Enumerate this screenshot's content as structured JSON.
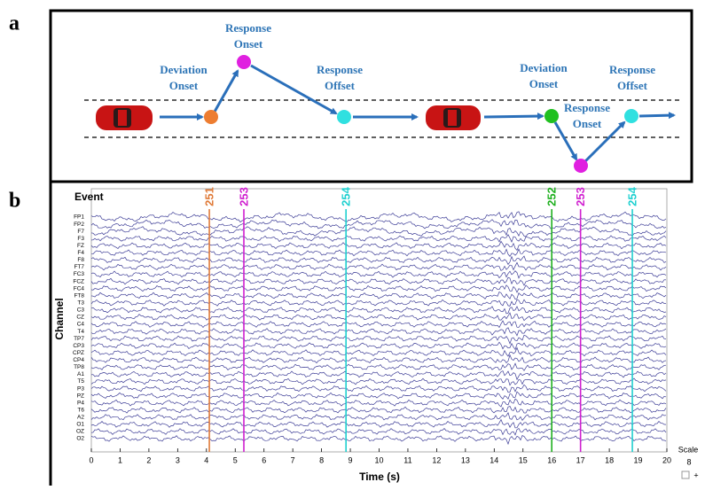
{
  "panel_labels": [
    "a",
    "b"
  ],
  "diagram": {
    "labels": [
      [
        "Deviation",
        "Onset"
      ],
      [
        "Response",
        "Onset"
      ],
      [
        "Response",
        "Offset"
      ],
      [
        "Deviation",
        "Onset"
      ],
      [
        "Response",
        "Onset"
      ],
      [
        "Response",
        "Offset"
      ]
    ]
  },
  "chart_data": {
    "type": "eeg",
    "xlabel": "Time (s)",
    "ylabel": "Channel",
    "event_label": "Event",
    "channels": [
      "FP1",
      "FP2",
      "F7",
      "F3",
      "FZ",
      "F4",
      "F8",
      "FT7",
      "FC3",
      "FCZ",
      "FC4",
      "FT8",
      "T3",
      "C3",
      "CZ",
      "C4",
      "T4",
      "TP7",
      "CP3",
      "CPZ",
      "CP4",
      "TP8",
      "A1",
      "T5",
      "P3",
      "PZ",
      "P4",
      "T6",
      "A2",
      "O1",
      "OZ",
      "O2"
    ],
    "trace_color": "#3c3c96",
    "events": {
      "x": [
        4.1,
        5.3,
        8.85,
        16.0,
        17.0,
        18.8
      ],
      "labels": [
        "251",
        "253",
        "254",
        "252",
        "253",
        "254"
      ],
      "colors": [
        "#e07b39",
        "#d020d0",
        "#20d0d0",
        "#20b020",
        "#d020d0",
        "#20d0d0"
      ]
    },
    "xlim": [
      0,
      20
    ],
    "xticks": [
      0,
      1,
      2,
      3,
      4,
      5,
      6,
      7,
      8,
      9,
      10,
      11,
      12,
      13,
      14,
      15,
      16,
      17,
      18,
      19,
      20
    ],
    "scale_label": "Scale",
    "scale_value": 8,
    "scale_control": "+"
  }
}
